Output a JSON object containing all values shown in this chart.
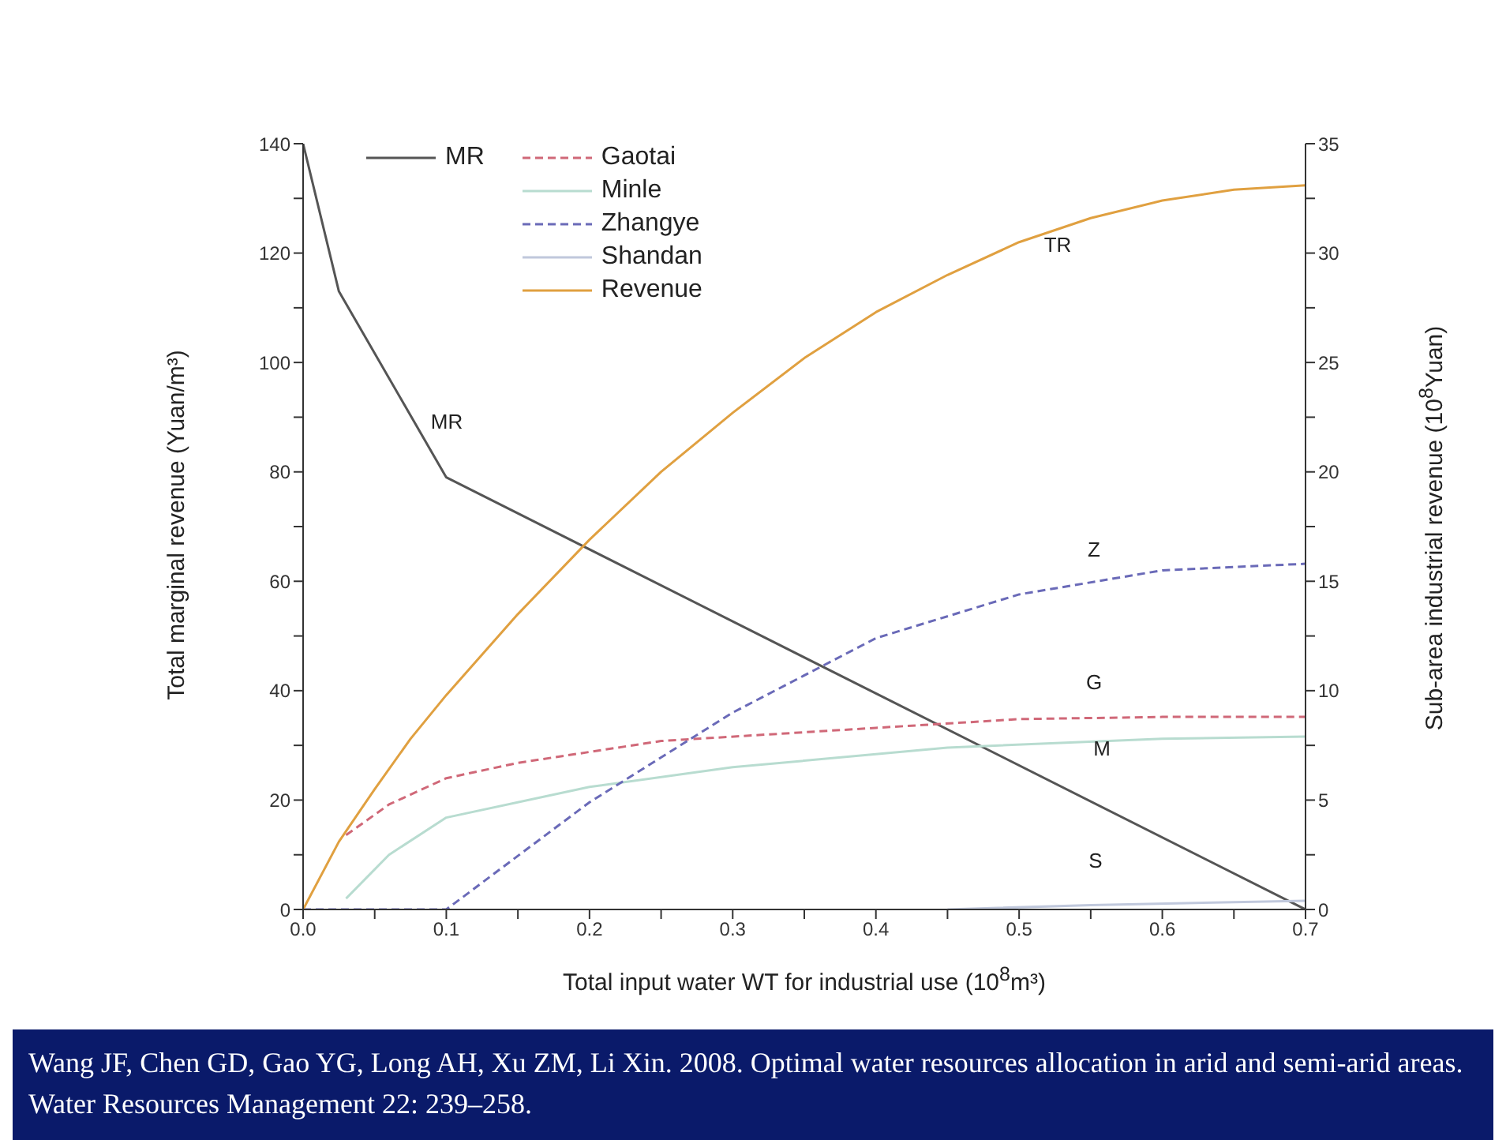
{
  "chart_data": {
    "type": "line",
    "xlabel": "Total input water WT for industrial use (10$^{8}$m³)",
    "ylabel": "Total marginal revenue (Yuan/m³)",
    "y2label": "Sub-area industrial revenue (10$^{8}$Yuan)",
    "xlim": [
      0,
      0.7
    ],
    "xticks": [
      {
        "value": 0,
        "label": "0.0"
      },
      {
        "value": 0.05,
        "label": null
      },
      0.1,
      {
        "value": 0.15,
        "label": null
      },
      0.2,
      {
        "value": 0.25,
        "label": null
      },
      0.3,
      {
        "value": 0.35,
        "label": null
      },
      0.4,
      {
        "value": 0.45,
        "label": null
      },
      0.5,
      {
        "value": 0.55,
        "label": null
      },
      0.6,
      {
        "value": 0.65,
        "label": null
      },
      0.7
    ],
    "ylim": [
      0,
      140
    ],
    "yticks": [
      0,
      {
        "value": 10,
        "label": null
      },
      20,
      {
        "value": 30,
        "label": null
      },
      40,
      {
        "value": 50,
        "label": null
      },
      60,
      {
        "value": 70,
        "label": null
      },
      80,
      {
        "value": 90,
        "label": null
      },
      100,
      {
        "value": 110,
        "label": null
      },
      120,
      {
        "value": 130,
        "label": null
      },
      140
    ],
    "y2lim": [
      0,
      35
    ],
    "y2ticks": [
      0,
      {
        "value": 2.5,
        "label": null
      },
      5,
      {
        "value": 7.5,
        "label": null
      },
      10,
      {
        "value": 12.5,
        "label": null
      },
      15,
      {
        "value": 17.5,
        "label": null
      },
      20,
      {
        "value": 22.5,
        "label": null
      },
      25,
      {
        "value": 27.5,
        "label": null
      },
      30,
      {
        "value": 32.5,
        "label": null
      },
      35
    ],
    "series": [
      {
        "name": "MR",
        "color": "#555555",
        "line_style": "solid",
        "x": [
          0,
          0.025,
          0.1,
          0.7
        ],
        "values": [
          140,
          113,
          79,
          0
        ]
      },
      {
        "name": "Gaotai",
        "color": "#d06878",
        "line_style": "dashed",
        "axis": "y2",
        "x": [
          0.03,
          0.06,
          0.1,
          0.15,
          0.25,
          0.4,
          0.5,
          0.6,
          0.7
        ],
        "values": [
          3.4,
          4.8,
          6.0,
          6.7,
          7.7,
          8.3,
          8.7,
          8.8,
          8.8
        ]
      },
      {
        "name": "Minle",
        "color": "#b8dcd0",
        "line_style": "solid",
        "axis": "y2",
        "x": [
          0.03,
          0.06,
          0.1,
          0.2,
          0.3,
          0.45,
          0.6,
          0.7
        ],
        "values": [
          0.5,
          2.5,
          4.2,
          5.6,
          6.5,
          7.4,
          7.8,
          7.9
        ]
      },
      {
        "name": "Zhangye",
        "color": "#6a6ab8",
        "line_style": "dashed",
        "axis": "y2",
        "x": [
          0,
          0.1,
          0.2,
          0.3,
          0.4,
          0.5,
          0.6,
          0.7
        ],
        "values": [
          0,
          0,
          4.9,
          9.0,
          12.4,
          14.4,
          15.5,
          15.8
        ]
      },
      {
        "name": "Shandan",
        "color": "#c0c8dc",
        "line_style": "solid",
        "axis": "y2",
        "x": [
          0.45,
          0.55,
          0.7
        ],
        "values": [
          0,
          0.2,
          0.4
        ]
      },
      {
        "name": "Revenue",
        "color": "#e0a040",
        "line_style": "solid",
        "axis": "y2",
        "x": [
          0,
          0.025,
          0.05,
          0.075,
          0.1,
          0.15,
          0.2,
          0.25,
          0.3,
          0.35,
          0.4,
          0.45,
          0.5,
          0.55,
          0.6,
          0.65,
          0.7
        ],
        "values": [
          0,
          3.1,
          5.5,
          7.8,
          9.8,
          13.5,
          16.9,
          20.0,
          22.7,
          25.2,
          27.3,
          29.0,
          30.5,
          31.6,
          32.4,
          32.9,
          33.1
        ]
      }
    ],
    "annotations": [
      "MR",
      "TR",
      "Z",
      "G",
      "M",
      "S",
      "Wang JF, Chen GD, Gao YG, Long AH, Xu ZM, Li Xin. 2008. Optimal water resources allocation in arid and semi-arid areas. Water Resources Management 22: 239–258."
    ],
    "legend": "top left"
  }
}
